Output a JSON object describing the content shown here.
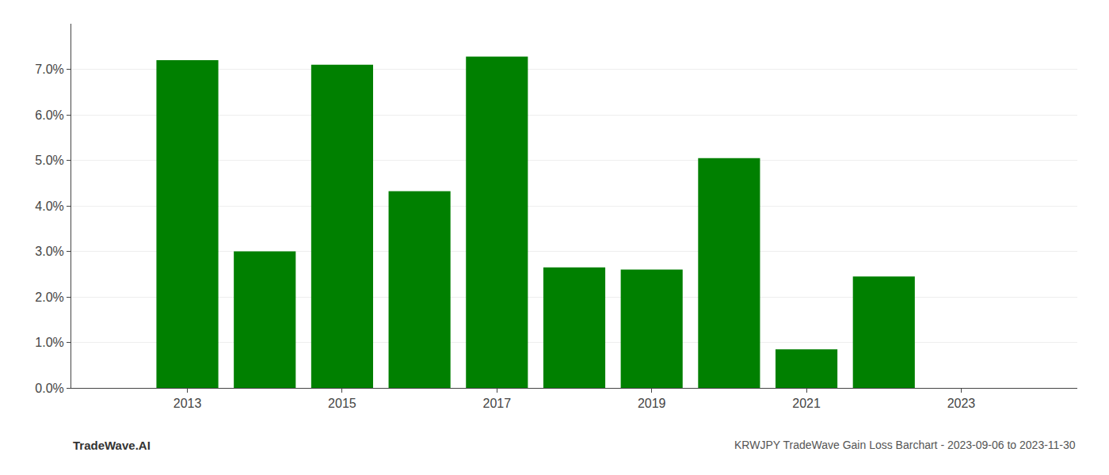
{
  "chart_data": {
    "type": "bar",
    "title": "KRWJPY TradeWave Gain Loss Barchart - 2023-09-06 to 2023-11-30",
    "annotations": [
      "TradeWave.AI"
    ],
    "x": [
      2013,
      2014,
      2015,
      2016,
      2017,
      2018,
      2019,
      2020,
      2021,
      2022
    ],
    "values": [
      0.072,
      0.03,
      0.071,
      0.0432,
      0.0728,
      0.0265,
      0.026,
      0.0505,
      0.0085,
      0.0245
    ],
    "color": "#008000",
    "xlim": [
      2011.5,
      2024.5
    ],
    "xticks": [
      2013,
      2015,
      2017,
      2019,
      2021,
      2023
    ],
    "ylim": [
      0.0,
      0.08
    ],
    "yticks": [
      {
        "value": 0.0,
        "label": "0.0%"
      },
      {
        "value": 0.01,
        "label": "1.0%"
      },
      {
        "value": 0.02,
        "label": "2.0%"
      },
      {
        "value": 0.03,
        "label": "3.0%"
      },
      {
        "value": 0.04,
        "label": "4.0%"
      },
      {
        "value": 0.05,
        "label": "5.0%"
      },
      {
        "value": 0.06,
        "label": "6.0%"
      },
      {
        "value": 0.07,
        "label": "7.0%"
      }
    ],
    "grid": true
  }
}
